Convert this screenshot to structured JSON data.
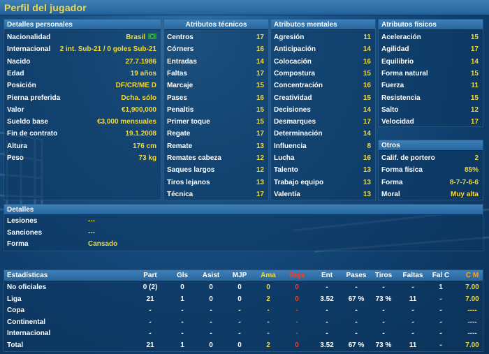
{
  "window": {
    "title": "Perfil del jugador"
  },
  "personal": {
    "header": "Detalles personales",
    "rows": [
      {
        "label": "Nacionalidad",
        "value": "Brasil",
        "flag": "brazil-flag-icon"
      },
      {
        "label": "Internacional",
        "value": "2 int. Sub-21 / 0 goles Sub-21"
      },
      {
        "label": "Nacido",
        "value": "27.7.1986"
      },
      {
        "label": "Edad",
        "value": "19 años"
      },
      {
        "label": "Posición",
        "value": "DF/CR/ME D"
      },
      {
        "label": "Pierna preferida",
        "value": "Dcha. sólo"
      },
      {
        "label": "Valor",
        "value": "€1,900,000"
      },
      {
        "label": "Sueldo base",
        "value": "€3,000 mensuales"
      },
      {
        "label": "Fin de contrato",
        "value": "19.1.2008"
      },
      {
        "label": "Altura",
        "value": "176 cm"
      },
      {
        "label": "Peso",
        "value": "73 kg"
      }
    ]
  },
  "technical": {
    "header": "Atributos técnicos",
    "rows": [
      {
        "label": "Centros",
        "value": "17"
      },
      {
        "label": "Córners",
        "value": "16"
      },
      {
        "label": "Entradas",
        "value": "14"
      },
      {
        "label": "Faltas",
        "value": "17"
      },
      {
        "label": "Marcaje",
        "value": "15"
      },
      {
        "label": "Pases",
        "value": "16"
      },
      {
        "label": "Penaltis",
        "value": "15"
      },
      {
        "label": "Primer toque",
        "value": "15"
      },
      {
        "label": "Regate",
        "value": "17"
      },
      {
        "label": "Remate",
        "value": "13"
      },
      {
        "label": "Remates cabeza",
        "value": "12"
      },
      {
        "label": "Saques largos",
        "value": "12"
      },
      {
        "label": "Tiros lejanos",
        "value": "13"
      },
      {
        "label": "Técnica",
        "value": "17"
      }
    ]
  },
  "mental": {
    "header": "Atributos mentales",
    "rows": [
      {
        "label": "Agresión",
        "value": "11"
      },
      {
        "label": "Anticipación",
        "value": "14"
      },
      {
        "label": "Colocación",
        "value": "16"
      },
      {
        "label": "Compostura",
        "value": "15"
      },
      {
        "label": "Concentración",
        "value": "16"
      },
      {
        "label": "Creatividad",
        "value": "15"
      },
      {
        "label": "Decisiones",
        "value": "14"
      },
      {
        "label": "Desmarques",
        "value": "17"
      },
      {
        "label": "Determinación",
        "value": "14"
      },
      {
        "label": "Influencia",
        "value": "8"
      },
      {
        "label": "Lucha",
        "value": "16"
      },
      {
        "label": "Talento",
        "value": "13"
      },
      {
        "label": "Trabajo equipo",
        "value": "13"
      },
      {
        "label": "Valentía",
        "value": "13"
      }
    ]
  },
  "physical": {
    "header": "Atributos físicos",
    "rows": [
      {
        "label": "Aceleración",
        "value": "15"
      },
      {
        "label": "Agilidad",
        "value": "17"
      },
      {
        "label": "Equilibrio",
        "value": "14"
      },
      {
        "label": "Forma natural",
        "value": "15"
      },
      {
        "label": "Fuerza",
        "value": "11"
      },
      {
        "label": "Resistencia",
        "value": "15"
      },
      {
        "label": "Salto",
        "value": "12"
      },
      {
        "label": "Velocidad",
        "value": "17"
      }
    ]
  },
  "others": {
    "header": "Otros",
    "rows": [
      {
        "label": "Calif. de portero",
        "value": "2"
      },
      {
        "label": "Forma física",
        "value": "85%"
      },
      {
        "label": "Forma",
        "value": "8-7-7-6-6"
      },
      {
        "label": "Moral",
        "value": "Muy alta"
      }
    ]
  },
  "details": {
    "header": "Detalles",
    "rows": [
      {
        "label": "Lesiones",
        "value": "---"
      },
      {
        "label": "Sanciones",
        "value": "---"
      },
      {
        "label": "Forma",
        "value": "Cansado"
      }
    ]
  },
  "stats": {
    "header": "Estadísticas",
    "columns": [
      "Part",
      "Gls",
      "Asist",
      "MJP",
      "Ama",
      "Roja",
      "Ent",
      "Pases",
      "Tiros",
      "Faltas",
      "Fal C",
      "C M"
    ],
    "rows": [
      {
        "label": "No oficiales",
        "cells": [
          "0 (2)",
          "0",
          "0",
          "0",
          "0",
          "0",
          "-",
          "-",
          "-",
          "-",
          "1",
          "7.00"
        ]
      },
      {
        "label": "Liga",
        "cells": [
          "21",
          "1",
          "0",
          "0",
          "2",
          "0",
          "3.52",
          "67 %",
          "73 %",
          "11",
          "-",
          "7.00"
        ]
      },
      {
        "label": "Copa",
        "cells": [
          "-",
          "-",
          "-",
          "-",
          "-",
          "-",
          "-",
          "-",
          "-",
          "-",
          "-",
          "----"
        ]
      },
      {
        "label": "Continental",
        "cells": [
          "-",
          "-",
          "-",
          "-",
          "-",
          "-",
          "-",
          "-",
          "-",
          "-",
          "-",
          "----"
        ]
      },
      {
        "label": "Internacional",
        "cells": [
          "-",
          "-",
          "-",
          "-",
          "-",
          "-",
          "-",
          "-",
          "-",
          "-",
          "-",
          "----"
        ]
      },
      {
        "label": "Total",
        "cells": [
          "21",
          "1",
          "0",
          "0",
          "2",
          "0",
          "3.52",
          "67 %",
          "73 %",
          "11",
          "-",
          "7.00"
        ]
      }
    ]
  },
  "colors": {
    "value_yellow": "#f2d83a",
    "red_card": "#ff3a20",
    "rating_orange": "#ffa21e",
    "header_blue": "#3d7fb7"
  }
}
